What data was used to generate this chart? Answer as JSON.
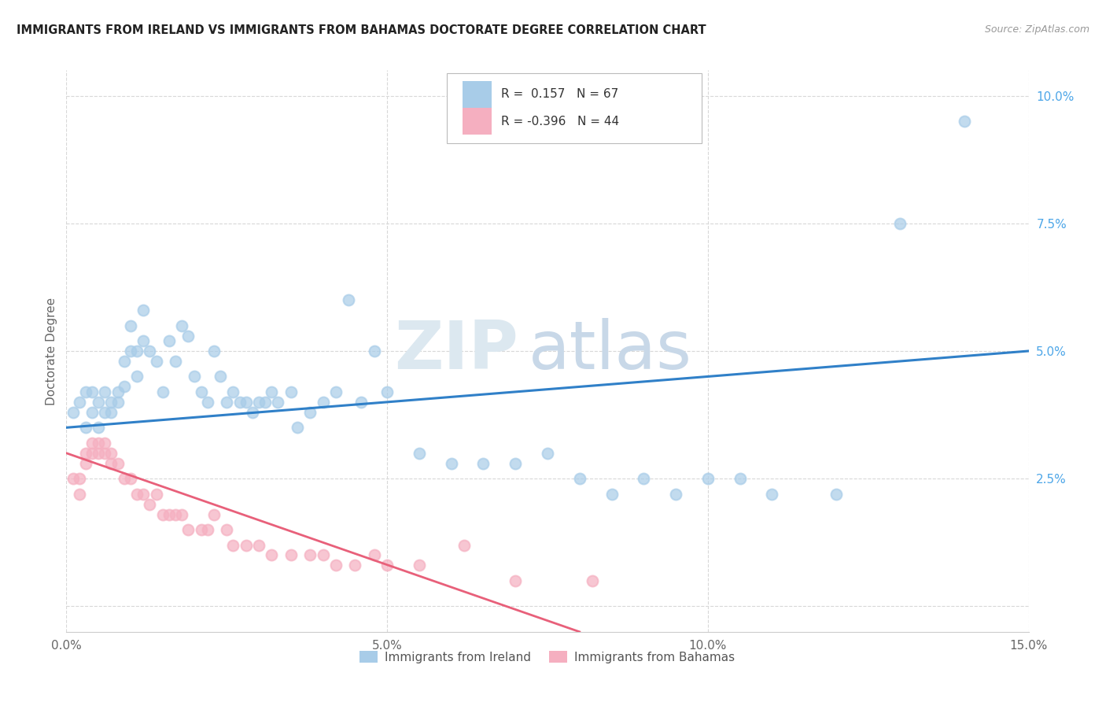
{
  "title": "IMMIGRANTS FROM IRELAND VS IMMIGRANTS FROM BAHAMAS DOCTORATE DEGREE CORRELATION CHART",
  "source": "Source: ZipAtlas.com",
  "ylabel": "Doctorate Degree",
  "xlim": [
    0.0,
    0.15
  ],
  "ylim": [
    -0.005,
    0.105
  ],
  "xtick_labels": [
    "0.0%",
    "5.0%",
    "10.0%",
    "15.0%"
  ],
  "xtick_vals": [
    0.0,
    0.05,
    0.1,
    0.15
  ],
  "ytick_labels_right": [
    "2.5%",
    "5.0%",
    "7.5%",
    "10.0%"
  ],
  "ytick_vals_right": [
    0.025,
    0.05,
    0.075,
    0.1
  ],
  "ytick_grid_vals": [
    0.0,
    0.025,
    0.05,
    0.075,
    0.1
  ],
  "ireland_R": 0.157,
  "ireland_N": 67,
  "bahamas_R": -0.396,
  "bahamas_N": 44,
  "ireland_color": "#a8cce8",
  "bahamas_color": "#f5afc0",
  "ireland_line_color": "#3080c8",
  "bahamas_line_color": "#e8607a",
  "background_color": "#ffffff",
  "grid_color": "#d8d8d8",
  "watermark_zip": "ZIP",
  "watermark_atlas": "atlas",
  "ireland_x": [
    0.001,
    0.002,
    0.003,
    0.003,
    0.004,
    0.004,
    0.005,
    0.005,
    0.006,
    0.006,
    0.007,
    0.007,
    0.008,
    0.008,
    0.009,
    0.009,
    0.01,
    0.01,
    0.011,
    0.011,
    0.012,
    0.012,
    0.013,
    0.014,
    0.015,
    0.016,
    0.017,
    0.018,
    0.019,
    0.02,
    0.021,
    0.022,
    0.023,
    0.024,
    0.025,
    0.026,
    0.027,
    0.028,
    0.029,
    0.03,
    0.031,
    0.032,
    0.033,
    0.035,
    0.036,
    0.038,
    0.04,
    0.042,
    0.044,
    0.046,
    0.048,
    0.05,
    0.055,
    0.06,
    0.065,
    0.07,
    0.075,
    0.08,
    0.085,
    0.09,
    0.095,
    0.1,
    0.105,
    0.11,
    0.12,
    0.13,
    0.14
  ],
  "ireland_y": [
    0.038,
    0.04,
    0.042,
    0.035,
    0.042,
    0.038,
    0.04,
    0.035,
    0.042,
    0.038,
    0.038,
    0.04,
    0.04,
    0.042,
    0.048,
    0.043,
    0.055,
    0.05,
    0.05,
    0.045,
    0.058,
    0.052,
    0.05,
    0.048,
    0.042,
    0.052,
    0.048,
    0.055,
    0.053,
    0.045,
    0.042,
    0.04,
    0.05,
    0.045,
    0.04,
    0.042,
    0.04,
    0.04,
    0.038,
    0.04,
    0.04,
    0.042,
    0.04,
    0.042,
    0.035,
    0.038,
    0.04,
    0.042,
    0.06,
    0.04,
    0.05,
    0.042,
    0.03,
    0.028,
    0.028,
    0.028,
    0.03,
    0.025,
    0.022,
    0.025,
    0.022,
    0.025,
    0.025,
    0.022,
    0.022,
    0.075,
    0.095
  ],
  "bahamas_x": [
    0.001,
    0.002,
    0.002,
    0.003,
    0.003,
    0.004,
    0.004,
    0.005,
    0.005,
    0.006,
    0.006,
    0.007,
    0.007,
    0.008,
    0.009,
    0.01,
    0.011,
    0.012,
    0.013,
    0.014,
    0.015,
    0.016,
    0.017,
    0.018,
    0.019,
    0.021,
    0.022,
    0.023,
    0.025,
    0.026,
    0.028,
    0.03,
    0.032,
    0.035,
    0.038,
    0.04,
    0.042,
    0.045,
    0.048,
    0.05,
    0.055,
    0.062,
    0.07,
    0.082
  ],
  "bahamas_y": [
    0.025,
    0.022,
    0.025,
    0.028,
    0.03,
    0.03,
    0.032,
    0.03,
    0.032,
    0.03,
    0.032,
    0.03,
    0.028,
    0.028,
    0.025,
    0.025,
    0.022,
    0.022,
    0.02,
    0.022,
    0.018,
    0.018,
    0.018,
    0.018,
    0.015,
    0.015,
    0.015,
    0.018,
    0.015,
    0.012,
    0.012,
    0.012,
    0.01,
    0.01,
    0.01,
    0.01,
    0.008,
    0.008,
    0.01,
    0.008,
    0.008,
    0.012,
    0.005,
    0.005
  ],
  "ireland_line_x0": 0.0,
  "ireland_line_y0": 0.035,
  "ireland_line_x1": 0.15,
  "ireland_line_y1": 0.05,
  "bahamas_line_x0": 0.0,
  "bahamas_line_y0": 0.03,
  "bahamas_line_x1": 0.08,
  "bahamas_line_y1": -0.005
}
